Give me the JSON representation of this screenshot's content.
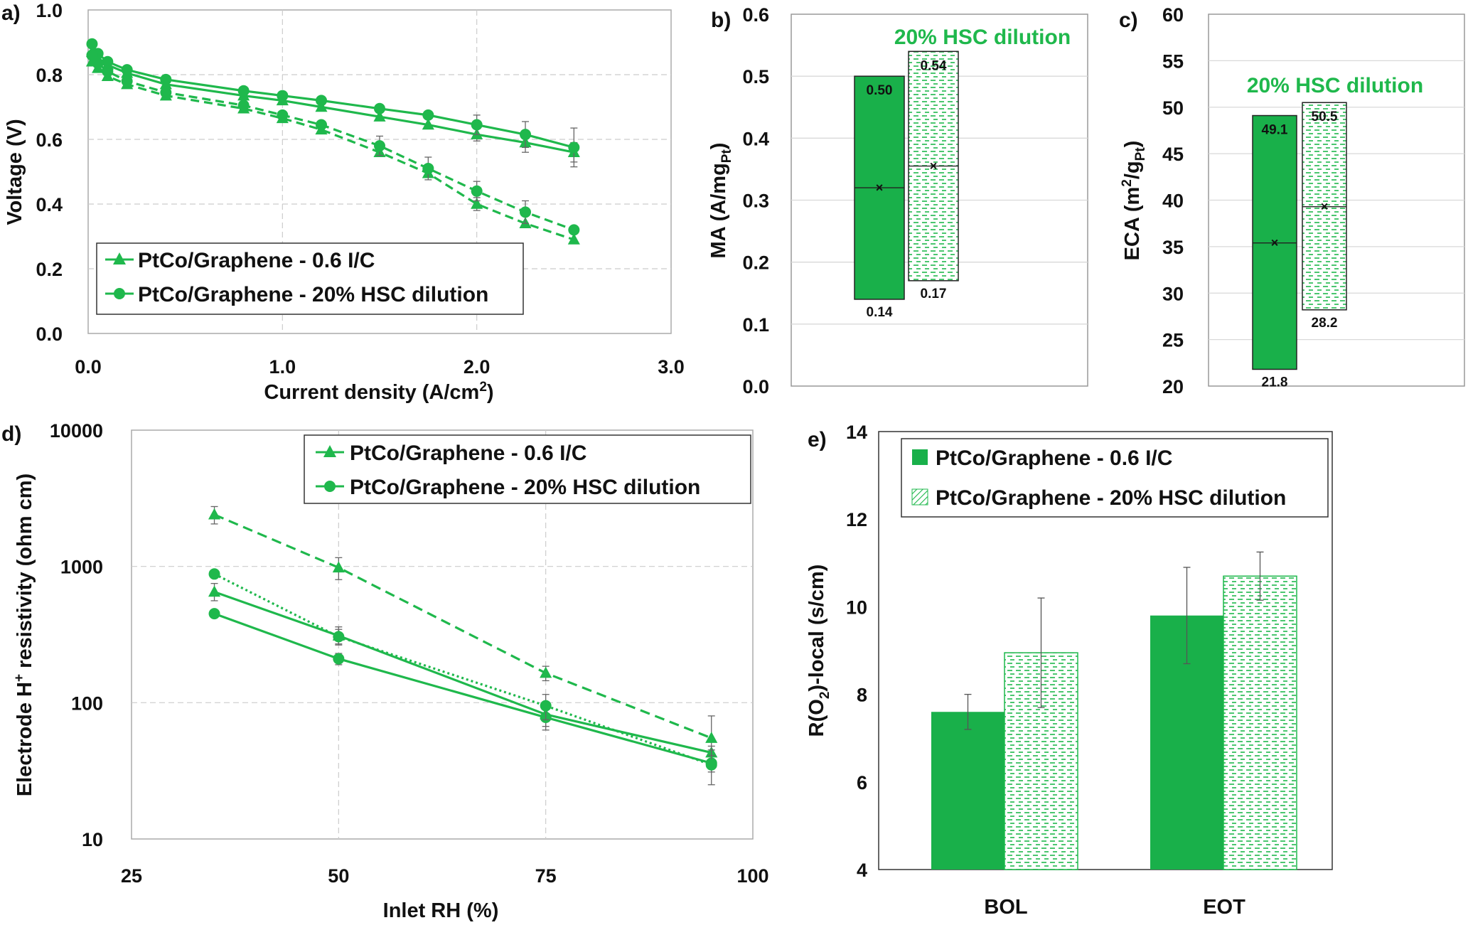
{
  "colors": {
    "green": "#1fb84c",
    "bar_green": "#19b04a",
    "grid": "#d9d9d9",
    "dash_grid": "#cccccc"
  },
  "chart_data": [
    {
      "id": "a",
      "panel_label": "a)",
      "type": "line",
      "xlabel": "Current density (A/cm",
      "xlabel_sup": "2",
      "xlabel_end": ")",
      "ylabel": "Voltage (V)",
      "xlim": [
        0.0,
        3.0
      ],
      "ylim": [
        0.0,
        1.0
      ],
      "xticks": [
        "0.0",
        "1.0",
        "2.0",
        "3.0"
      ],
      "yticks": [
        "0.0",
        "0.2",
        "0.4",
        "0.6",
        "0.8",
        "1.0"
      ],
      "legend_position": "bottom-left",
      "legend": [
        "PtCo/Graphene - 0.6 I/C",
        "PtCo/Graphene - 20% HSC dilution"
      ],
      "series": [
        {
          "marker": "triangle",
          "line": "solid",
          "x": [
            0.02,
            0.05,
            0.1,
            0.2,
            0.4,
            0.8,
            1.0,
            1.2,
            1.5,
            1.75,
            2.0,
            2.25,
            2.5
          ],
          "y": [
            0.87,
            0.85,
            0.83,
            0.805,
            0.77,
            0.735,
            0.72,
            0.7,
            0.67,
            0.645,
            0.615,
            0.59,
            0.56
          ],
          "err": [
            0,
            0,
            0,
            0,
            0,
            0,
            0,
            0,
            0,
            0,
            0.02,
            0.03,
            0.03
          ]
        },
        {
          "marker": "triangle",
          "line": "dashed",
          "x": [
            0.02,
            0.05,
            0.1,
            0.2,
            0.4,
            0.8,
            1.0,
            1.2,
            1.5,
            1.75,
            2.0,
            2.25,
            2.5
          ],
          "y": [
            0.84,
            0.82,
            0.795,
            0.77,
            0.735,
            0.695,
            0.665,
            0.63,
            0.56,
            0.495,
            0.4,
            0.34,
            0.29
          ],
          "err": [
            0,
            0,
            0,
            0,
            0,
            0,
            0,
            0,
            0,
            0,
            0.02,
            0,
            0
          ]
        },
        {
          "marker": "circle",
          "line": "solid",
          "x": [
            0.02,
            0.05,
            0.1,
            0.2,
            0.4,
            0.8,
            1.0,
            1.2,
            1.5,
            1.75,
            2.0,
            2.25,
            2.5
          ],
          "y": [
            0.895,
            0.865,
            0.84,
            0.815,
            0.785,
            0.75,
            0.735,
            0.72,
            0.695,
            0.675,
            0.645,
            0.615,
            0.575
          ],
          "err": [
            0,
            0,
            0,
            0,
            0,
            0,
            0,
            0,
            0,
            0,
            0.03,
            0.04,
            0.06
          ]
        },
        {
          "marker": "circle",
          "line": "dashed",
          "x": [
            0.02,
            0.05,
            0.1,
            0.2,
            0.4,
            0.8,
            1.0,
            1.2,
            1.5,
            1.75,
            2.0,
            2.25,
            2.5
          ],
          "y": [
            0.86,
            0.835,
            0.81,
            0.78,
            0.745,
            0.705,
            0.675,
            0.645,
            0.58,
            0.51,
            0.44,
            0.375,
            0.32
          ],
          "err": [
            0,
            0,
            0,
            0,
            0,
            0,
            0,
            0,
            0.03,
            0.035,
            0.03,
            0.035,
            0
          ]
        }
      ]
    },
    {
      "id": "b",
      "panel_label": "b)",
      "type": "box",
      "title": "20% HSC dilution",
      "ylabel": "MA (A/mg",
      "ylabel_sub": "Pt",
      "ylabel_end": ")",
      "ylim": [
        0.0,
        0.6
      ],
      "yticks": [
        "0.0",
        "0.1",
        "0.2",
        "0.3",
        "0.4",
        "0.5",
        "0.6"
      ],
      "boxes": [
        {
          "pattern": "solid",
          "min": 0.14,
          "max": 0.5,
          "mean": 0.32,
          "min_label": "0.14",
          "max_label": "0.50"
        },
        {
          "pattern": "hatched",
          "min": 0.17,
          "max": 0.54,
          "mean": 0.355,
          "min_label": "0.17",
          "max_label": "0.54"
        }
      ]
    },
    {
      "id": "c",
      "panel_label": "c)",
      "type": "box",
      "title": "20% HSC dilution",
      "ylabel": "ECA (m",
      "ylabel_sup": "2",
      "ylabel_mid": "/g",
      "ylabel_sub": "Pt",
      "ylabel_end": ")",
      "ylim": [
        20,
        60
      ],
      "yticks": [
        "20",
        "25",
        "30",
        "35",
        "40",
        "45",
        "50",
        "55",
        "60"
      ],
      "boxes": [
        {
          "pattern": "solid",
          "min": 21.8,
          "max": 49.1,
          "mean": 35.4,
          "min_label": "21.8",
          "max_label": "49.1"
        },
        {
          "pattern": "hatched",
          "min": 28.2,
          "max": 50.5,
          "mean": 39.3,
          "min_label": "28.2",
          "max_label": "50.5"
        }
      ]
    },
    {
      "id": "d",
      "panel_label": "d)",
      "type": "line",
      "yscale": "log",
      "xlabel": "Inlet RH (%)",
      "ylabel": "Electrode H",
      "ylabel_sup": "+",
      "ylabel_end": " resistivity (ohm cm)",
      "xlim": [
        25,
        100
      ],
      "ylim": [
        10,
        10000
      ],
      "xticks": [
        "25",
        "50",
        "75",
        "100"
      ],
      "yticks": [
        "10",
        "100",
        "1000",
        "10000"
      ],
      "legend_position": "top-right",
      "legend": [
        "PtCo/Graphene - 0.6 I/C",
        "PtCo/Graphene - 20% HSC dilution"
      ],
      "series": [
        {
          "marker": "triangle",
          "line": "solid",
          "x": [
            35,
            50,
            75,
            95
          ],
          "y": [
            650,
            310,
            82,
            43
          ],
          "err_lo": [
            90,
            40,
            15,
            5
          ],
          "err_hi": [
            100,
            50,
            15,
            5
          ]
        },
        {
          "marker": "triangle",
          "line": "dashed",
          "x": [
            35,
            50,
            75,
            95
          ],
          "y": [
            2400,
            980,
            165,
            55
          ],
          "err_lo": [
            350,
            180,
            20,
            20
          ],
          "err_hi": [
            350,
            180,
            20,
            25
          ]
        },
        {
          "marker": "circle",
          "line": "solid",
          "x": [
            35,
            50,
            75,
            95
          ],
          "y": [
            450,
            210,
            78,
            36
          ],
          "err_lo": [
            0,
            20,
            15,
            5
          ],
          "err_hi": [
            0,
            20,
            15,
            5
          ]
        },
        {
          "marker": "circle",
          "line": "dotted",
          "x": [
            35,
            50,
            75,
            95
          ],
          "y": [
            880,
            305,
            95,
            35
          ],
          "err_lo": [
            0,
            40,
            20,
            10
          ],
          "err_hi": [
            0,
            40,
            20,
            10
          ]
        }
      ]
    },
    {
      "id": "e",
      "panel_label": "e)",
      "type": "bar",
      "ylabel": "R(O",
      "ylabel_sub": "2",
      "ylabel_end": ")-local (s/cm)",
      "ylim": [
        4,
        14
      ],
      "yticks": [
        "4",
        "6",
        "8",
        "10",
        "12",
        "14"
      ],
      "categories": [
        "BOL",
        "EOT"
      ],
      "legend_position": "top",
      "legend": [
        "PtCo/Graphene - 0.6 I/C",
        "PtCo/Graphene - 20% HSC dilution"
      ],
      "series": [
        {
          "pattern": "solid",
          "values": [
            7.6,
            9.8
          ],
          "err": [
            0.4,
            1.1
          ]
        },
        {
          "pattern": "hatched",
          "values": [
            8.95,
            10.7
          ],
          "err": [
            1.25,
            0.55
          ]
        }
      ]
    }
  ]
}
